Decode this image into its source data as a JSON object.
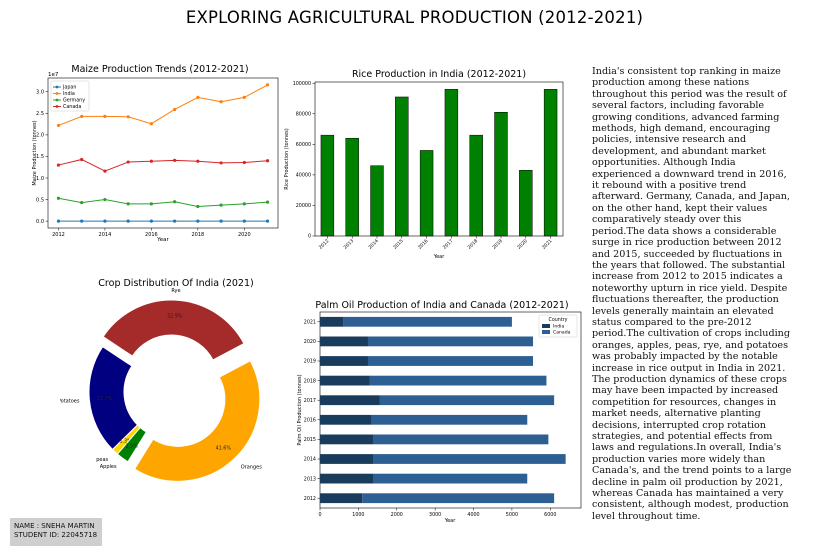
{
  "main_title": "EXPLORING AGRICULTURAL PRODUCTION (2012-2021)",
  "description": "India's consistent top ranking in maize production among these nations throughout this period was the result of several factors, including favorable growing conditions, advanced farming methods, high demand, encouraging policies, intensive research and development, and abundant market opportunities. Although India experienced a downward trend in 2016, it rebound with a positive trend afterward. Germany, Canada, and Japan, on the other hand, kept their values comparatively steady over this period.The data shows a considerable surge in rice production between 2012 and 2015, succeeded by fluctuations in the  years that followed. The substantial increase from 2012 to 2015 indicates a noteworthy upturn in rice yield. Despite fluctuations thereafter, the production levels generally maintain an elevated status compared to the pre-2012 period.The cultivation of crops including oranges, apples, peas, rye, and potatoes was probably impacted by the notable increase in rice output in India in 2021. The production dynamics of these crops may have been impacted by increased competition for resources, changes in market needs, alternative planting decisions, interrupted crop rotation strategies, and potential effects from laws and regulations.In overall, India's production varies more widely than Canada's, and the trend points to a large decline in palm oil production by 2021, whereas Canada has maintained a very consistent, although modest, production level throughout time.",
  "student": {
    "name": "NAME : SNEHA MARTIN",
    "id": "STUDENT ID: 22045718"
  },
  "chart_data": [
    {
      "type": "line",
      "title": "Maize Production Trends (2012-2021)",
      "xlabel": "Year",
      "ylabel": "Maize Production (tonnes)",
      "y_offset_label": "1e7",
      "x": [
        2012,
        2013,
        2014,
        2015,
        2016,
        2017,
        2018,
        2019,
        2020,
        2021
      ],
      "x_ticks": [
        "2012",
        "2014",
        "2016",
        "2018",
        "2020"
      ],
      "x_tick_values": [
        2012,
        2014,
        2016,
        2018,
        2020
      ],
      "y_ticks": [
        "0.0",
        "0.5",
        "1.0",
        "1.5",
        "2.0",
        "2.5",
        "3.0"
      ],
      "y_tick_values": [
        0,
        0.5,
        1.0,
        1.5,
        2.0,
        2.5,
        3.0
      ],
      "xlim": [
        2011.55,
        2021.45
      ],
      "ylim": [
        -0.16,
        3.32
      ],
      "grid": false,
      "legend": "top-left",
      "series": [
        {
          "name": "Japan",
          "color": "#1f77b4",
          "values": [
            0.0,
            0.0,
            0.0,
            0.0,
            0.0,
            0.0,
            0.0,
            0.0,
            0.0,
            0.0
          ]
        },
        {
          "name": "India",
          "color": "#ff7f0e",
          "values": [
            2.22,
            2.43,
            2.43,
            2.42,
            2.26,
            2.59,
            2.87,
            2.77,
            2.87,
            3.16
          ]
        },
        {
          "name": "Germany",
          "color": "#2ca02c",
          "values": [
            0.53,
            0.43,
            0.5,
            0.4,
            0.4,
            0.45,
            0.34,
            0.37,
            0.4,
            0.44
          ]
        },
        {
          "name": "Canada",
          "color": "#d62728",
          "values": [
            1.3,
            1.43,
            1.16,
            1.37,
            1.39,
            1.41,
            1.39,
            1.35,
            1.36,
            1.4
          ]
        }
      ]
    },
    {
      "type": "bar",
      "title": "Rice Production in India (2012-2021)",
      "xlabel": "Year",
      "ylabel": "Rice Production (tonnes)",
      "categories": [
        "2012",
        "2013",
        "2014",
        "2015",
        "2016",
        "2017",
        "2018",
        "2019",
        "2020",
        "2021"
      ],
      "values": [
        66000,
        64000,
        46000,
        91000,
        56000,
        96000,
        66000,
        81000,
        43000,
        96000
      ],
      "color": "#008000",
      "y_ticks": [
        "0",
        "20000",
        "40000",
        "60000",
        "80000",
        "100000"
      ],
      "y_tick_values": [
        0,
        20000,
        40000,
        60000,
        80000,
        100000
      ],
      "ylim": [
        0,
        100800
      ],
      "grid": false
    },
    {
      "type": "pie",
      "title": "Crop Distribution Of India (2021)",
      "labels": [
        "Rye",
        "Potatoes",
        "peas",
        "Apples",
        "Oranges"
      ],
      "values": [
        32.9,
        21.7,
        1.3,
        2.5,
        41.6
      ],
      "pct_labels": [
        "32.9%",
        "21.7%",
        "1.3%",
        "2.5%",
        "41.6%"
      ],
      "colors": [
        "#a52a2a",
        "#000080",
        "#ffd700",
        "#008000",
        "#ffa500"
      ],
      "donut": true
    },
    {
      "type": "bar",
      "orientation": "horizontal",
      "stacked": true,
      "title": "Palm Oil Production of India and Canada (2012-2021)",
      "xlabel": "Year",
      "ylabel": "Palm Oil Production (tonnes)",
      "categories": [
        "2012",
        "2013",
        "2014",
        "2015",
        "2016",
        "2017",
        "2018",
        "2019",
        "2020",
        "2021"
      ],
      "series": [
        {
          "name": "India",
          "color": "#1a3c5c",
          "values": [
            1100,
            1400,
            1400,
            1400,
            1350,
            1550,
            1300,
            1250,
            1250,
            600
          ]
        },
        {
          "name": "Canada",
          "color": "#2e5f92",
          "values": [
            5000,
            4000,
            5000,
            4550,
            4050,
            4550,
            4600,
            4300,
            4300,
            4400
          ]
        }
      ],
      "legend_title": "Country",
      "x_ticks": [
        "0",
        "1000",
        "2000",
        "3000",
        "4000",
        "5000",
        "6000"
      ],
      "x_tick_values": [
        0,
        1000,
        2000,
        3000,
        4000,
        5000,
        6000
      ],
      "xlim": [
        0,
        6800
      ],
      "grid": false,
      "legend": "top-right"
    }
  ]
}
